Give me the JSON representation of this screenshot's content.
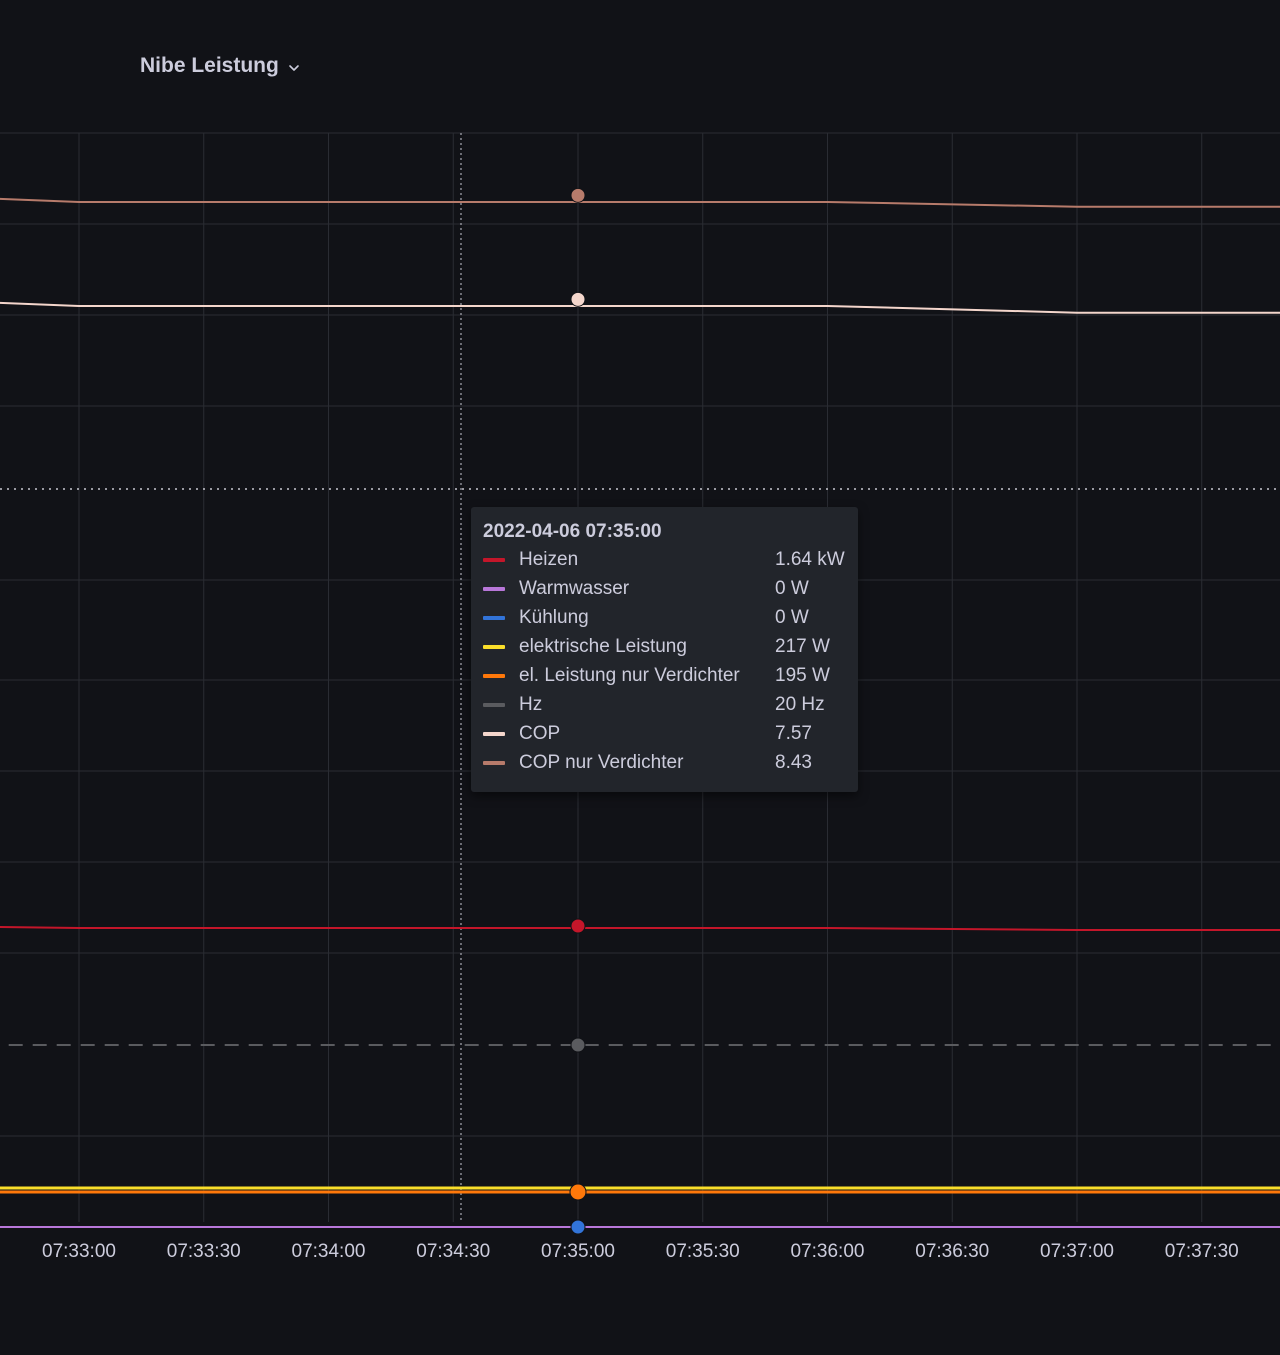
{
  "panel": {
    "title": "Nibe Leistung",
    "menu_icon": "chevron-down-icon"
  },
  "tooltip": {
    "time": "2022-04-06 07:35:00",
    "rows": [
      {
        "name": "Heizen",
        "value": "1.64 kW",
        "color": "#c4162a"
      },
      {
        "name": "Warmwasser",
        "value": "0 W",
        "color": "#b877d9"
      },
      {
        "name": "Kühlung",
        "value": "0 W",
        "color": "#3274d9"
      },
      {
        "name": "elektrische Leistung",
        "value": "217 W",
        "color": "#fade2a"
      },
      {
        "name": "el. Leistung nur Verdichter",
        "value": "195 W",
        "color": "#ff780a"
      },
      {
        "name": "Hz",
        "value": "20 Hz",
        "color": "#5a5b5f"
      },
      {
        "name": "COP",
        "value": "7.57",
        "color": "#f4d6cc"
      },
      {
        "name": "COP nur Verdichter",
        "value": "8.43",
        "color": "#b77b6b"
      }
    ]
  },
  "chart_data": {
    "type": "line",
    "x_ticks": [
      "07:33:00",
      "07:33:30",
      "07:34:00",
      "07:34:30",
      "07:35:00",
      "07:35:30",
      "07:36:00",
      "07:36:30",
      "07:37:00",
      "07:37:30"
    ],
    "grid": true,
    "legend": "tooltip",
    "hover_time": "07:35:00",
    "series": [
      {
        "name": "COP nur Verdichter",
        "color": "#b77b6b",
        "x": [
          "07:32:20",
          "07:33:00",
          "07:36:00",
          "07:37:00",
          "07:37:50"
        ],
        "y": [
          8.5,
          8.43,
          8.43,
          8.38,
          8.38
        ]
      },
      {
        "name": "COP",
        "color": "#f4d6cc",
        "x": [
          "07:32:20",
          "07:33:00",
          "07:36:00",
          "07:37:00",
          "07:37:50"
        ],
        "y": [
          7.64,
          7.57,
          7.57,
          7.5,
          7.5
        ]
      },
      {
        "name": "Heizen",
        "color": "#c4162a",
        "x": [
          "07:32:20",
          "07:33:00",
          "07:36:00",
          "07:37:00",
          "07:37:50"
        ],
        "y": [
          1.66,
          1.64,
          1.64,
          1.62,
          1.62
        ]
      },
      {
        "name": "Hz",
        "color": "#5a5b5f",
        "dashed": true,
        "x": [
          "07:32:20",
          "07:37:50"
        ],
        "y": [
          20,
          20
        ]
      },
      {
        "name": "elektrische Leistung",
        "color": "#fade2a",
        "x": [
          "07:32:20",
          "07:37:50"
        ],
        "y": [
          217,
          217
        ]
      },
      {
        "name": "el. Leistung nur Verdichter",
        "color": "#ff780a",
        "x": [
          "07:32:20",
          "07:37:50"
        ],
        "y": [
          195,
          195
        ]
      },
      {
        "name": "Kühlung",
        "color": "#3274d9",
        "x": [
          "07:32:20",
          "07:37:50"
        ],
        "y": [
          0,
          0
        ]
      },
      {
        "name": "Warmwasser",
        "color": "#b877d9",
        "x": [
          "07:32:20",
          "07:37:50"
        ],
        "y": [
          0,
          0
        ]
      }
    ]
  }
}
